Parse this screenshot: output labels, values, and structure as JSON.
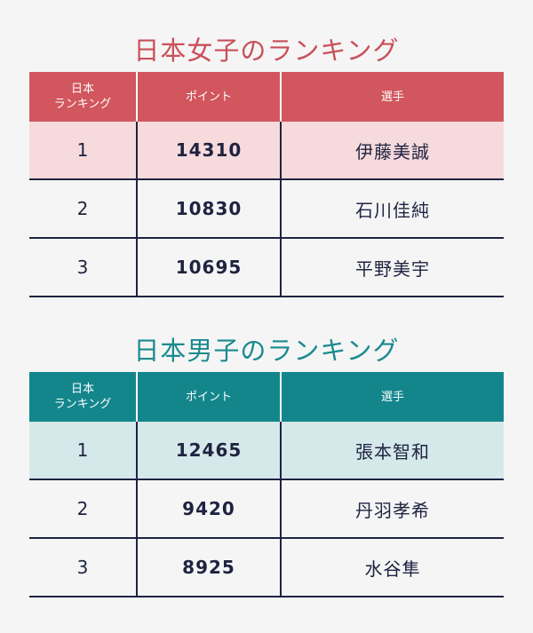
{
  "women": {
    "title": "日本女子のランキング",
    "header": {
      "rank_line1": "日本",
      "rank_line2": "ランキング",
      "points": "ポイント",
      "player": "選手"
    },
    "rows": [
      {
        "rank": "1",
        "points": "14310",
        "player": "伊藤美誠"
      },
      {
        "rank": "2",
        "points": "10830",
        "player": "石川佳純"
      },
      {
        "rank": "3",
        "points": "10695",
        "player": "平野美宇"
      }
    ],
    "colors": {
      "title": "#c9505a",
      "header_bg": "#d1565d",
      "highlight_bg": "#f6dadc"
    }
  },
  "men": {
    "title": "日本男子のランキング",
    "header": {
      "rank_line1": "日本",
      "rank_line2": "ランキング",
      "points": "ポイント",
      "player": "選手"
    },
    "rows": [
      {
        "rank": "1",
        "points": "12465",
        "player": "張本智和"
      },
      {
        "rank": "2",
        "points": "9420",
        "player": "丹羽孝希"
      },
      {
        "rank": "3",
        "points": "8925",
        "player": "水谷隼"
      }
    ],
    "colors": {
      "title": "#1b8a8f",
      "header_bg": "#13868c",
      "highlight_bg": "#d5e8ea"
    }
  }
}
